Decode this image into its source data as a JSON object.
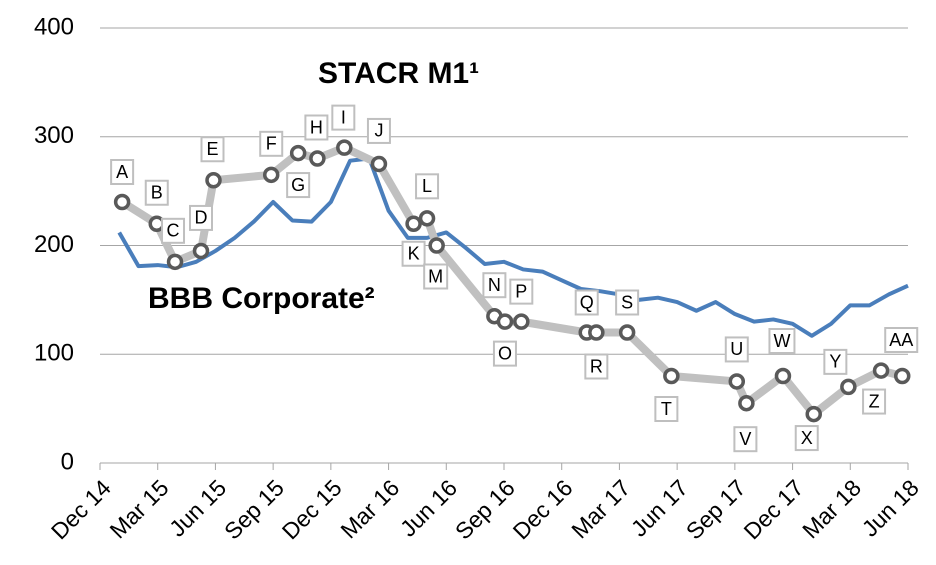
{
  "chart_data": {
    "type": "line",
    "xlim": [
      0,
      42
    ],
    "xticks": [
      {
        "value": 0,
        "label": "Dec 14"
      },
      {
        "value": 3,
        "label": "Mar 15"
      },
      {
        "value": 6,
        "label": "Jun 15"
      },
      {
        "value": 9,
        "label": "Sep 15"
      },
      {
        "value": 12,
        "label": "Dec 15"
      },
      {
        "value": 15,
        "label": "Mar 16"
      },
      {
        "value": 18,
        "label": "Jun 16"
      },
      {
        "value": 21,
        "label": "Sep 16"
      },
      {
        "value": 24,
        "label": "Dec 16"
      },
      {
        "value": 27,
        "label": "Mar 17"
      },
      {
        "value": 30,
        "label": "Jun 17"
      },
      {
        "value": 33,
        "label": "Sep 17"
      },
      {
        "value": 36,
        "label": "Dec 17"
      },
      {
        "value": 39,
        "label": "Mar 18"
      },
      {
        "value": 42,
        "label": "Jun 18"
      }
    ],
    "ylim": [
      0,
      400
    ],
    "yticks": [
      0,
      100,
      200,
      300,
      400
    ],
    "grid": true,
    "series": [
      {
        "name": "BBB Corporate²",
        "color": "#4a7ebb",
        "x": [
          1,
          2,
          3,
          4,
          5,
          6,
          7,
          8,
          9,
          10,
          11,
          12,
          13,
          14,
          15,
          16,
          17,
          18,
          19,
          20,
          21,
          22,
          23,
          24,
          25,
          26,
          27,
          28,
          29,
          30,
          31,
          32,
          33,
          34,
          35,
          36,
          37,
          38,
          39,
          40,
          41,
          42
        ],
        "values": [
          212,
          181,
          182,
          180,
          185,
          195,
          207,
          222,
          240,
          223,
          222,
          240,
          278,
          280,
          232,
          207,
          207,
          212,
          198,
          183,
          185,
          178,
          176,
          168,
          160,
          158,
          155,
          150,
          152,
          148,
          140,
          148,
          137,
          130,
          132,
          128,
          117,
          128,
          145,
          145,
          155,
          163
        ]
      },
      {
        "name": "STACR M1¹",
        "color": "#c0c0c0",
        "marker_color": "#595959",
        "x": [
          1.15,
          2.95,
          3.9,
          5.25,
          5.9,
          8.9,
          10.3,
          11.3,
          12.7,
          14.5,
          16.3,
          17.0,
          17.5,
          20.5,
          21.05,
          21.9,
          25.3,
          25.8,
          27.4,
          29.7,
          33.1,
          33.6,
          35.5,
          37.1,
          38.9,
          40.6,
          41.7
        ],
        "values": [
          240,
          220,
          185,
          195,
          260,
          265,
          285,
          280,
          290,
          275,
          220,
          225,
          200,
          135,
          130,
          130,
          120,
          120,
          120,
          80,
          75,
          55,
          80,
          45,
          70,
          85,
          80
        ],
        "point_labels": [
          "A",
          "B",
          "C",
          "D",
          "E",
          "F",
          "G",
          "H",
          "I",
          "J",
          "K",
          "L",
          "M",
          "N",
          "O",
          "P",
          "Q",
          "R",
          "S",
          "T",
          "U",
          "V",
          "W",
          "X",
          "Y",
          "Z",
          "AA"
        ]
      }
    ]
  }
}
